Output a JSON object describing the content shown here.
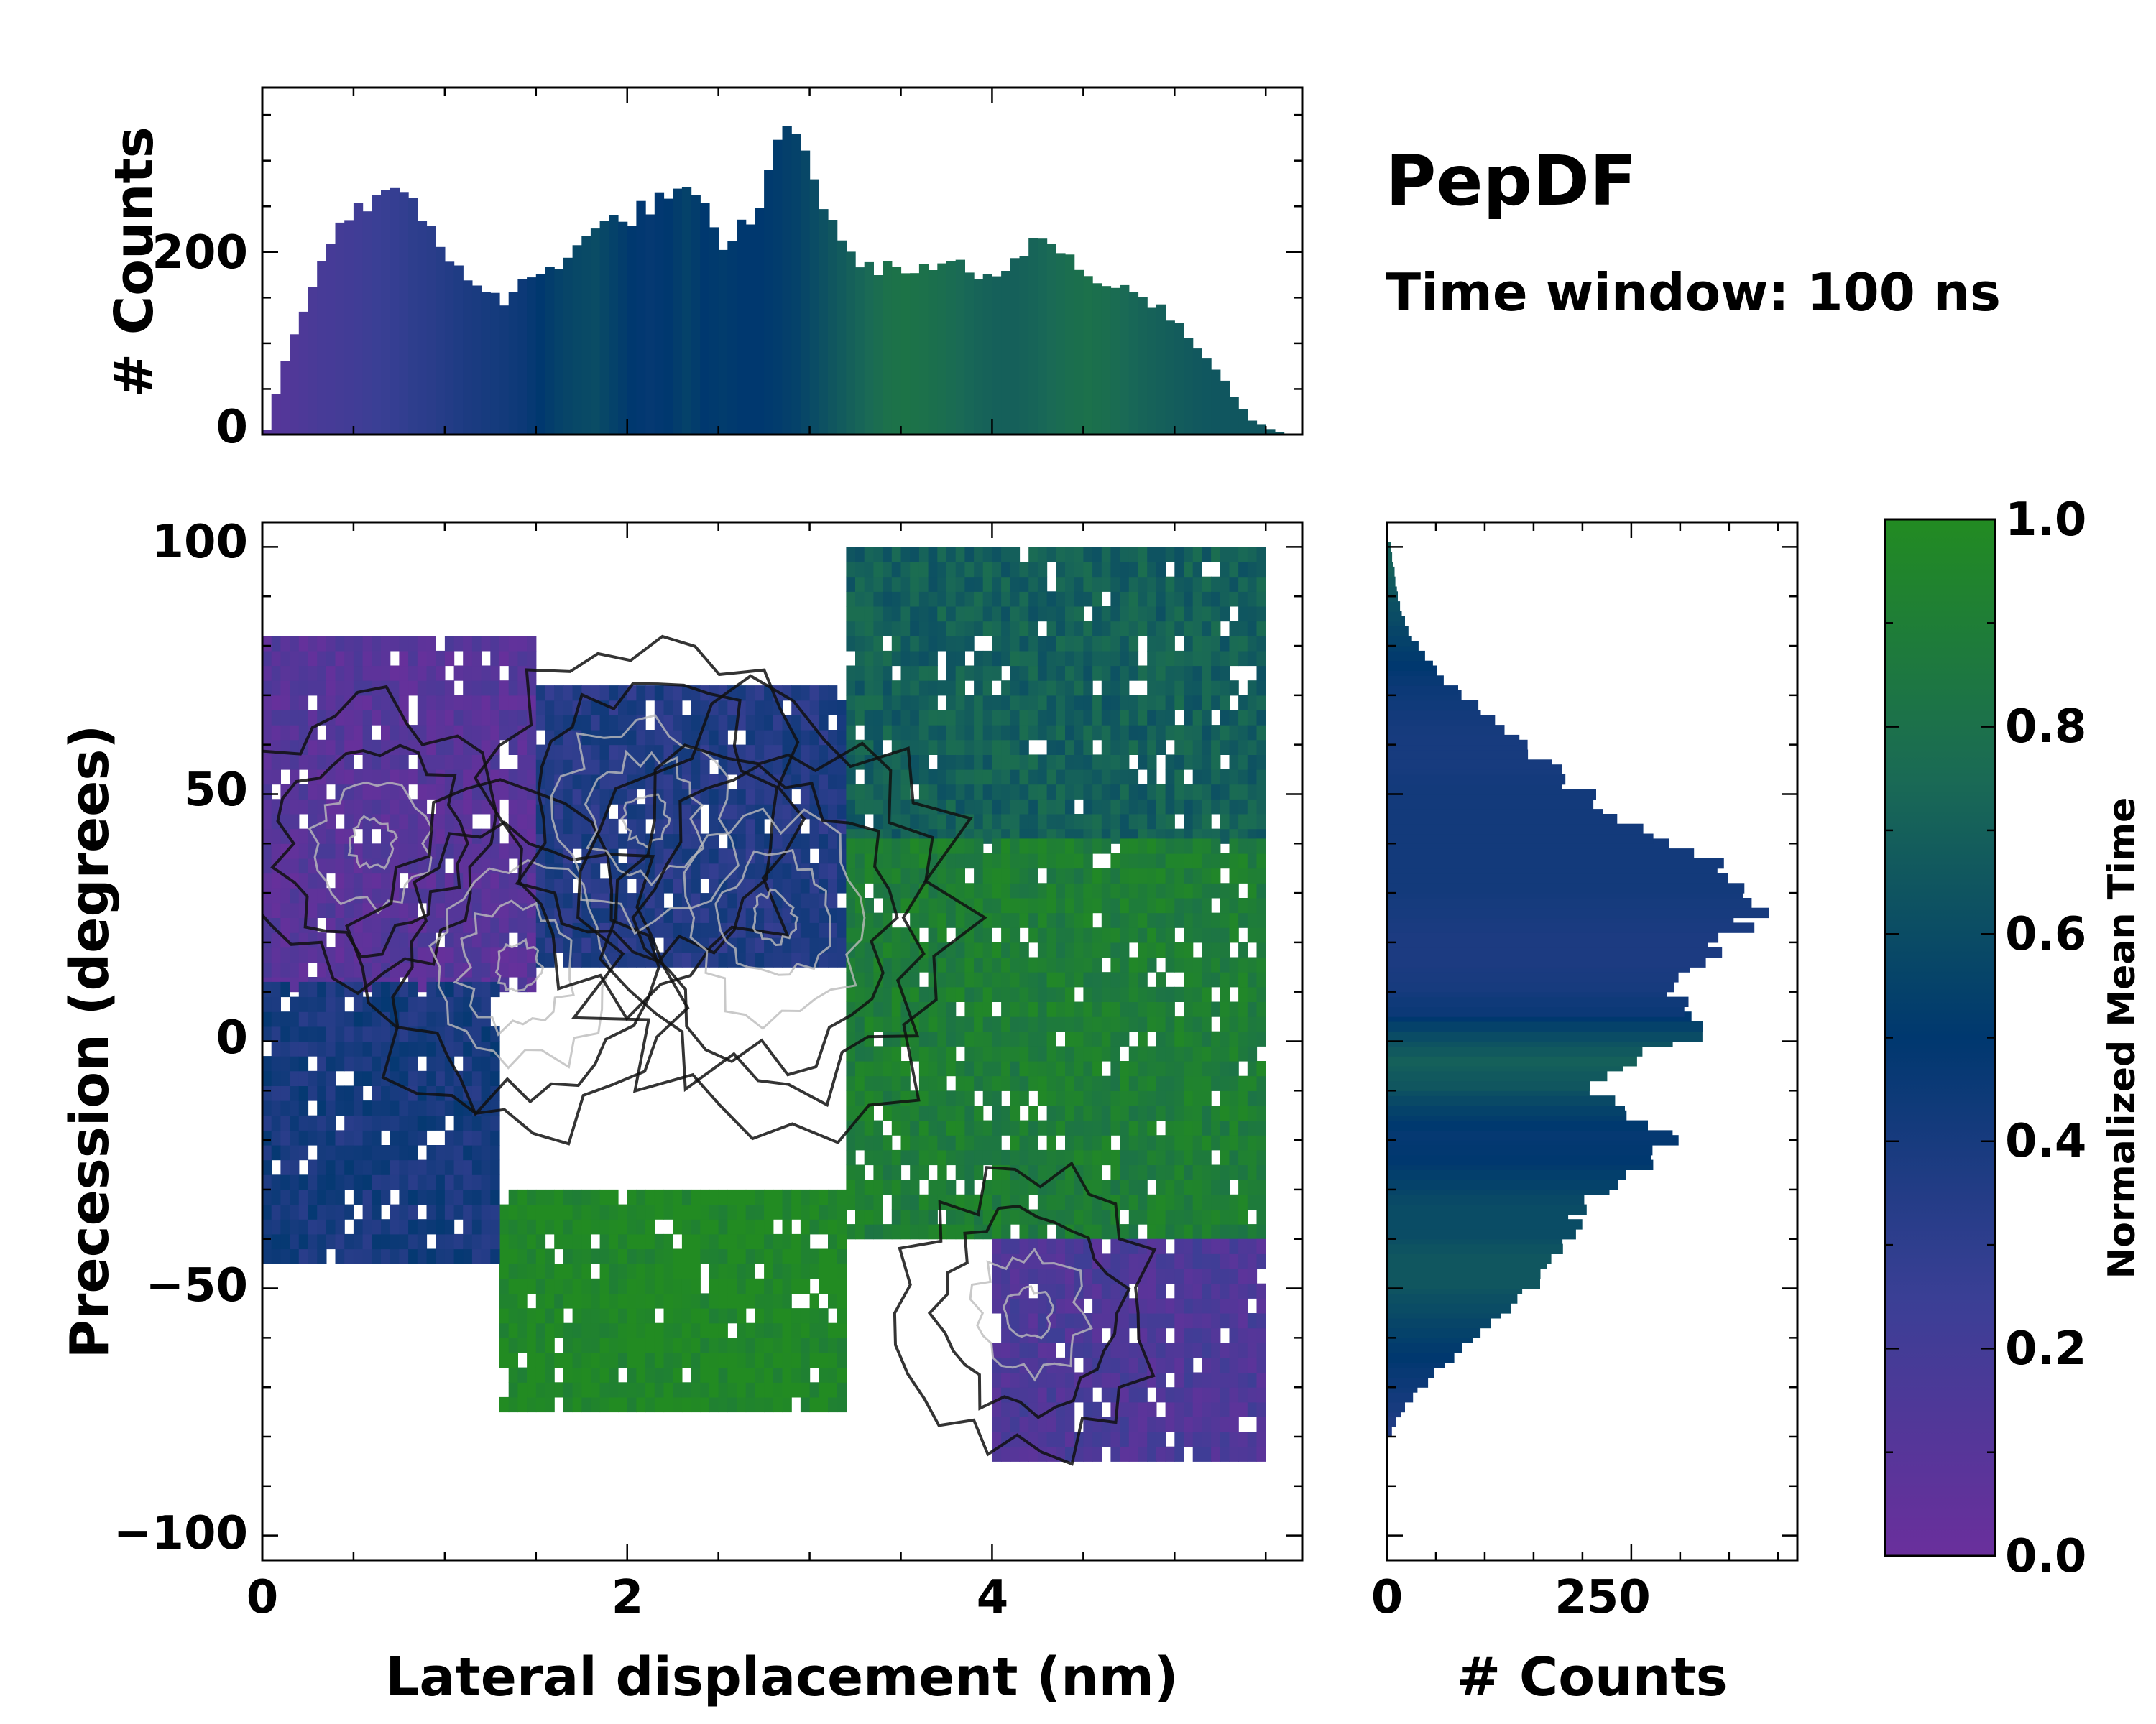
{
  "title": "PepDF",
  "subtitle": "Time window: 100 ns",
  "colors": {
    "cmap": [
      "#6a2f9c",
      "#3a3f95",
      "#00386f",
      "#1a6a55",
      "#228b22"
    ],
    "contour_dark": "#111111",
    "contour_light": "#bbbbbb"
  },
  "chart_data": [
    {
      "name": "main-2d-histogram",
      "type": "heatmap",
      "xlabel": "Lateral displacement (nm)",
      "ylabel": "Precession (degrees)",
      "xlim": [
        0,
        5.7
      ],
      "ylim": [
        -105,
        105
      ],
      "xticks": [
        0,
        2,
        4
      ],
      "xtick_labels": [
        "0",
        "2",
        "4"
      ],
      "yticks": [
        -100,
        -50,
        0,
        50,
        100
      ],
      "ytick_labels": [
        "−100",
        "−50",
        "0",
        "50",
        "100"
      ],
      "color_meaning": "Normalized Mean Time",
      "regions": [
        {
          "x_range": [
            0.0,
            1.5
          ],
          "y_range": [
            10,
            80
          ],
          "mean_time": 0.1
        },
        {
          "x_range": [
            1.5,
            3.2
          ],
          "y_range": [
            15,
            70
          ],
          "mean_time": 0.35
        },
        {
          "x_range": [
            3.2,
            5.5
          ],
          "y_range": [
            40,
            100
          ],
          "mean_time": 0.7
        },
        {
          "x_range": [
            3.2,
            5.5
          ],
          "y_range": [
            -40,
            40
          ],
          "mean_time": 0.9
        },
        {
          "x_range": [
            1.3,
            3.2
          ],
          "y_range": [
            -75,
            -30
          ],
          "mean_time": 0.98
        },
        {
          "x_range": [
            4.0,
            5.5
          ],
          "y_range": [
            -85,
            -40
          ],
          "mean_time": 0.15
        },
        {
          "x_range": [
            0.0,
            1.3
          ],
          "y_range": [
            -45,
            10
          ],
          "mean_time": 0.4
        }
      ],
      "contour_peaks": [
        {
          "x": 0.6,
          "y": 40,
          "level": 0.6
        },
        {
          "x": 1.4,
          "y": 15,
          "level": 0.8
        },
        {
          "x": 2.1,
          "y": 45,
          "level": 0.8
        },
        {
          "x": 2.8,
          "y": 25,
          "level": 1.0
        },
        {
          "x": 4.2,
          "y": -55,
          "level": 0.5
        }
      ]
    },
    {
      "name": "top-marginal-histogram",
      "type": "bar",
      "xlabel": "",
      "ylabel": "# Counts",
      "xlim": [
        0,
        5.7
      ],
      "ylim": [
        0,
        380
      ],
      "yticks": [
        0,
        200
      ],
      "ytick_labels": [
        "0",
        "200"
      ],
      "bin_width": 0.05,
      "x": [
        0.0,
        0.1,
        0.2,
        0.3,
        0.4,
        0.5,
        0.6,
        0.7,
        0.8,
        0.9,
        1.0,
        1.1,
        1.2,
        1.3,
        1.4,
        1.5,
        1.6,
        1.7,
        1.8,
        1.9,
        2.0,
        2.1,
        2.2,
        2.3,
        2.4,
        2.5,
        2.6,
        2.7,
        2.8,
        2.9,
        3.0,
        3.1,
        3.2,
        3.3,
        3.4,
        3.5,
        3.6,
        3.7,
        3.8,
        3.9,
        4.0,
        4.1,
        4.2,
        4.3,
        4.4,
        4.5,
        4.6,
        4.7,
        4.8,
        4.9,
        5.0,
        5.1,
        5.2,
        5.3,
        5.4,
        5.5,
        5.6
      ],
      "values": [
        5,
        80,
        140,
        190,
        230,
        250,
        262,
        260,
        250,
        225,
        195,
        175,
        155,
        145,
        165,
        175,
        190,
        210,
        220,
        235,
        240,
        250,
        265,
        262,
        242,
        200,
        225,
        255,
        315,
        340,
        285,
        225,
        195,
        185,
        182,
        175,
        188,
        180,
        185,
        168,
        170,
        190,
        215,
        210,
        198,
        178,
        170,
        160,
        150,
        140,
        120,
        92,
        72,
        42,
        16,
        6,
        0
      ],
      "color_values": [
        0.1,
        0.12,
        0.15,
        0.18,
        0.2,
        0.22,
        0.25,
        0.27,
        0.3,
        0.32,
        0.35,
        0.38,
        0.4,
        0.42,
        0.45,
        0.5,
        0.55,
        0.58,
        0.6,
        0.55,
        0.5,
        0.48,
        0.5,
        0.55,
        0.5,
        0.52,
        0.5,
        0.5,
        0.52,
        0.55,
        0.6,
        0.65,
        0.7,
        0.75,
        0.8,
        0.82,
        0.8,
        0.78,
        0.75,
        0.72,
        0.7,
        0.7,
        0.72,
        0.75,
        0.78,
        0.8,
        0.78,
        0.75,
        0.72,
        0.7,
        0.68,
        0.66,
        0.65,
        0.65,
        0.65,
        0.65,
        0.65
      ]
    },
    {
      "name": "right-marginal-histogram",
      "type": "bar",
      "orientation": "horizontal",
      "xlabel": "# Counts",
      "ylabel": "",
      "xlim": [
        0,
        420
      ],
      "ylim": [
        -105,
        105
      ],
      "xticks": [
        0,
        250
      ],
      "xtick_labels": [
        "0",
        "250"
      ],
      "bin_width": 2,
      "y": [
        -80,
        -75,
        -70,
        -65,
        -60,
        -55,
        -50,
        -45,
        -40,
        -35,
        -30,
        -25,
        -20,
        -15,
        -10,
        -5,
        0,
        5,
        10,
        15,
        20,
        25,
        30,
        35,
        40,
        45,
        50,
        55,
        60,
        65,
        70,
        75,
        80,
        85,
        90,
        95,
        100
      ],
      "values": [
        5,
        18,
        40,
        70,
        100,
        130,
        150,
        170,
        190,
        200,
        240,
        280,
        300,
        240,
        200,
        250,
        320,
        310,
        300,
        320,
        350,
        370,
        380,
        340,
        280,
        230,
        190,
        160,
        140,
        100,
        70,
        45,
        25,
        15,
        10,
        6,
        3
      ],
      "color_values": [
        0.35,
        0.4,
        0.45,
        0.5,
        0.55,
        0.6,
        0.65,
        0.65,
        0.6,
        0.6,
        0.55,
        0.5,
        0.48,
        0.55,
        0.65,
        0.7,
        0.6,
        0.45,
        0.4,
        0.38,
        0.38,
        0.4,
        0.42,
        0.42,
        0.42,
        0.42,
        0.42,
        0.4,
        0.4,
        0.42,
        0.45,
        0.5,
        0.55,
        0.6,
        0.65,
        0.7,
        0.7
      ]
    }
  ],
  "colorbar": {
    "label": "Normalized Mean Time",
    "range": [
      0.0,
      1.0
    ],
    "ticks": [
      0.0,
      0.2,
      0.4,
      0.6,
      0.8,
      1.0
    ],
    "tick_labels": [
      "0.0",
      "0.2",
      "0.4",
      "0.6",
      "0.8",
      "1.0"
    ]
  }
}
